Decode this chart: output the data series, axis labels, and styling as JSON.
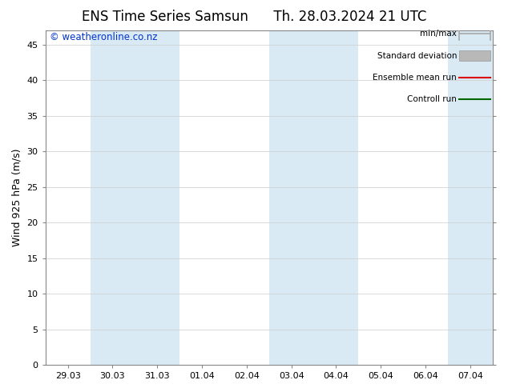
{
  "title_left": "ENS Time Series Samsun",
  "title_right": "Th. 28.03.2024 21 UTC",
  "ylabel": "Wind 925 hPa (m/s)",
  "watermark": "© weatheronline.co.nz",
  "x_tick_labels": [
    "29.03",
    "30.03",
    "31.03",
    "01.04",
    "02.04",
    "03.04",
    "04.04",
    "05.04",
    "06.04",
    "07.04"
  ],
  "x_tick_positions": [
    0,
    1,
    2,
    3,
    4,
    5,
    6,
    7,
    8,
    9
  ],
  "ylim": [
    0,
    47
  ],
  "yticks": [
    0,
    5,
    10,
    15,
    20,
    25,
    30,
    35,
    40,
    45
  ],
  "xlim": [
    -0.5,
    9.5
  ],
  "bg_color": "#ffffff",
  "plot_bg_color": "#ffffff",
  "shaded_columns": [
    1,
    2,
    5,
    6,
    9
  ],
  "shaded_color": "#daeaf5",
  "legend_items": [
    {
      "label": "min/max",
      "color": "#a8a8a8",
      "type": "errorbar"
    },
    {
      "label": "Standard deviation",
      "color": "#b8b8b8",
      "type": "band"
    },
    {
      "label": "Ensemble mean run",
      "color": "#dd0000",
      "type": "line"
    },
    {
      "label": "Controll run",
      "color": "#006600",
      "type": "line"
    }
  ],
  "title_fontsize": 12,
  "tick_fontsize": 8,
  "ylabel_fontsize": 9,
  "watermark_fontsize": 8.5,
  "grid_color": "#cccccc",
  "spine_color": "#888888",
  "tick_color": "#000000"
}
